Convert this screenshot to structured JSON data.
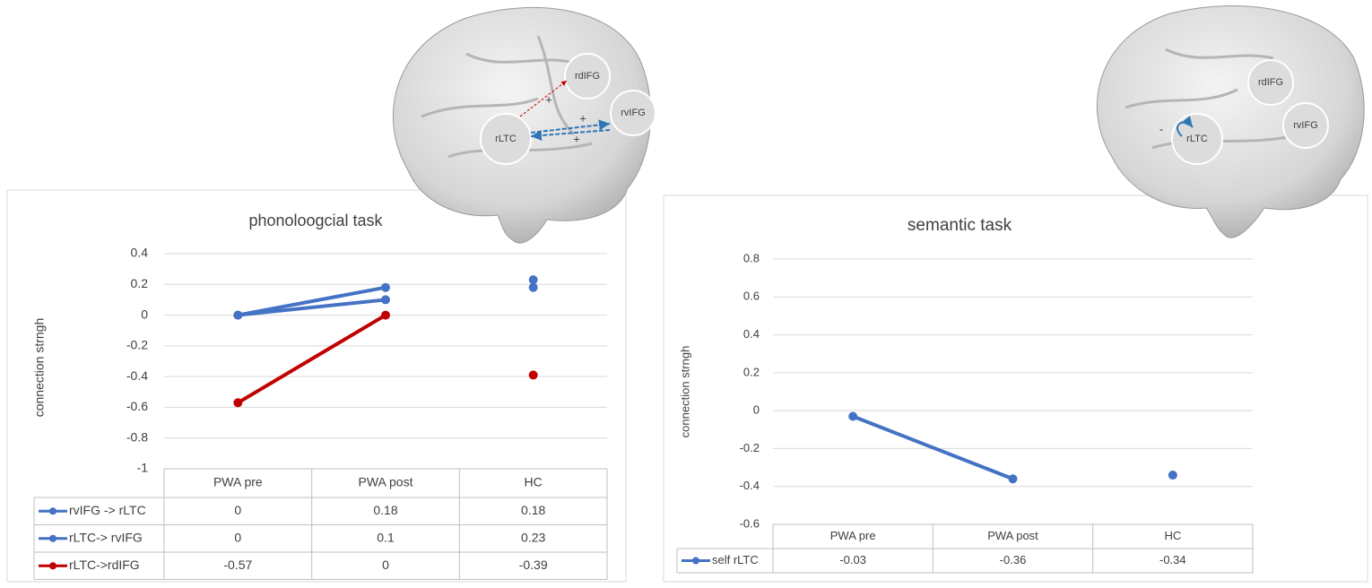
{
  "chart_data": [
    {
      "type": "line",
      "title": "phonoloogcial task",
      "y_label": "connection strngh",
      "categories": [
        "PWA pre",
        "PWA post",
        "HC"
      ],
      "series": [
        {
          "name": "rvIFG -> rLTC",
          "color": "#4472c4",
          "values": [
            0,
            0.18,
            0.18
          ]
        },
        {
          "name": "rLTC-> rvIFG",
          "color": "#4472c4",
          "values": [
            0,
            0.1,
            0.23
          ]
        },
        {
          "name": "rLTC->rdIFG",
          "color": "#c00000",
          "values": [
            -0.57,
            0,
            -0.39
          ]
        }
      ],
      "ylim": [
        -1,
        0.4
      ],
      "yticks": [
        -1,
        -0.8,
        -0.6,
        -0.4,
        -0.2,
        0,
        0.2,
        0.4
      ],
      "grid": true,
      "line_to_index": 1,
      "annotations": [
        "rdIFG",
        "rvIFG",
        "rLTC",
        "+",
        "+",
        "+"
      ]
    },
    {
      "type": "line",
      "title": "semantic task",
      "y_label": "connection strngh",
      "categories": [
        "PWA pre",
        "PWA post",
        "HC"
      ],
      "series": [
        {
          "name": "self rLTC",
          "color": "#4472c4",
          "values": [
            -0.03,
            -0.36,
            -0.34
          ]
        }
      ],
      "ylim": [
        -0.6,
        0.8
      ],
      "yticks": [
        -0.6,
        -0.4,
        -0.2,
        0,
        0.2,
        0.4,
        0.6,
        0.8
      ],
      "grid": true,
      "line_to_index": 1,
      "annotations": [
        "rdIFG",
        "rvIFG",
        "rLTC",
        "-"
      ]
    }
  ]
}
